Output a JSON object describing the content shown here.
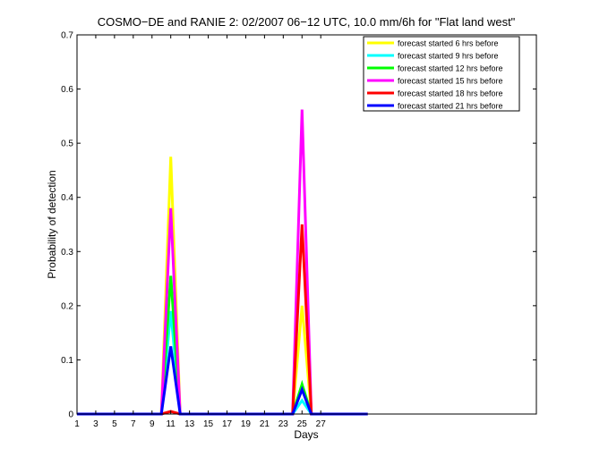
{
  "chart_data": {
    "type": "line",
    "title": "COSMO−DE and RANIE 2: 02/2007 06−12 UTC, 10.0 mm/6h for \"Flat land west\"",
    "xlabel": "Days",
    "ylabel": "Probability of detection",
    "xlim": [
      1,
      50
    ],
    "ylim": [
      0,
      0.7
    ],
    "xticks": [
      "1",
      "3",
      "5",
      "7",
      "9",
      "11",
      "13",
      "15",
      "17",
      "19",
      "21",
      "23",
      "25",
      "27"
    ],
    "yticks": [
      "0",
      "0.1",
      "0.2",
      "0.3",
      "0.4",
      "0.5",
      "0.6",
      "0.7"
    ],
    "grid": false,
    "legend_position": "top-right",
    "x": [
      1,
      2,
      3,
      4,
      5,
      6,
      7,
      8,
      9,
      10,
      11,
      12,
      13,
      14,
      15,
      16,
      17,
      18,
      19,
      20,
      21,
      22,
      23,
      24,
      25,
      26,
      27,
      28,
      29,
      30,
      31,
      32
    ],
    "series": [
      {
        "name": "forecast started 6 hrs before",
        "color": "#ffff00",
        "values": [
          0,
          0,
          0,
          0,
          0,
          0,
          0,
          0,
          0,
          0,
          0.475,
          0,
          0,
          0,
          0,
          0,
          0,
          0,
          0,
          0,
          0,
          0,
          0,
          0,
          0.2,
          0,
          0,
          0,
          0,
          0,
          0,
          0
        ]
      },
      {
        "name": "forecast started 9 hrs before",
        "color": "#00ffff",
        "values": [
          0,
          0,
          0,
          0,
          0,
          0,
          0,
          0,
          0,
          0,
          0.19,
          0,
          0,
          0,
          0,
          0,
          0,
          0,
          0,
          0,
          0,
          0,
          0,
          0,
          0.025,
          0,
          0,
          0,
          0,
          0,
          0,
          0
        ]
      },
      {
        "name": "forecast started 12 hrs before",
        "color": "#00ff00",
        "values": [
          0,
          0,
          0,
          0,
          0,
          0,
          0,
          0,
          0,
          0,
          0.255,
          0,
          0,
          0,
          0,
          0,
          0,
          0,
          0,
          0,
          0,
          0,
          0,
          0,
          0.055,
          0,
          0,
          0,
          0,
          0,
          0,
          0
        ]
      },
      {
        "name": "forecast started 15 hrs before",
        "color": "#ff00ff",
        "values": [
          0,
          0,
          0,
          0,
          0,
          0,
          0,
          0,
          0,
          0,
          0.38,
          0,
          0,
          0,
          0,
          0,
          0,
          0,
          0,
          0,
          0,
          0,
          0,
          0,
          0.562,
          0,
          0,
          0,
          0,
          0,
          0,
          0
        ]
      },
      {
        "name": "forecast started 18 hrs before",
        "color": "#ff0000",
        "values": [
          0,
          0,
          0,
          0,
          0,
          0,
          0,
          0,
          0,
          0,
          0.005,
          0,
          0,
          0,
          0,
          0,
          0,
          0,
          0,
          0,
          0,
          0,
          0,
          0,
          0.35,
          0,
          0,
          0,
          0,
          0,
          0,
          0
        ]
      },
      {
        "name": "forecast started 21 hrs before",
        "color": "#0000ff",
        "values": [
          0,
          0,
          0,
          0,
          0,
          0,
          0,
          0,
          0,
          0,
          0.125,
          0,
          0,
          0,
          0,
          0,
          0,
          0,
          0,
          0,
          0,
          0,
          0,
          0,
          0.045,
          0,
          0,
          0,
          0,
          0,
          0,
          0
        ]
      }
    ]
  }
}
